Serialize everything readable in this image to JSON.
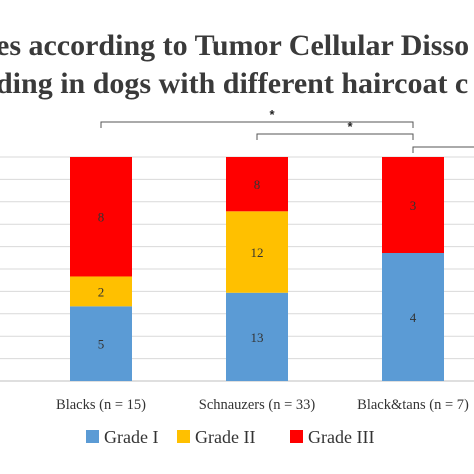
{
  "chart_data": {
    "type": "bar",
    "stacked": true,
    "title_lines": [
      "es according to Tumor Cellular Disso",
      "ding in dogs with different haircoat c"
    ],
    "categories": [
      "Blacks (n = 15)",
      "Schnauzers (n = 33)",
      "Black&tans (n = 7)"
    ],
    "series": [
      {
        "name": "Grade I",
        "color": "#5b9bd5",
        "values": [
          5,
          13,
          4
        ]
      },
      {
        "name": "Grade II",
        "color": "#ffc000",
        "values": [
          2,
          12,
          null
        ]
      },
      {
        "name": "Grade III",
        "color": "#ff0000",
        "values": [
          8,
          8,
          3
        ]
      }
    ],
    "yscale": "percent",
    "ylim": [
      0,
      100
    ],
    "grid": true,
    "legend_position": "bottom",
    "significance": [
      {
        "label": "*",
        "from": "Blacks (n = 15)",
        "to": "Black&tans (n = 7)"
      },
      {
        "label": "*",
        "from": "Schnauzers (n = 33)",
        "to": "Black&tans (n = 7)"
      },
      {
        "label": "",
        "from": "Black&tans (n = 7)",
        "to": "Black&tans (n = 7)"
      }
    ]
  }
}
